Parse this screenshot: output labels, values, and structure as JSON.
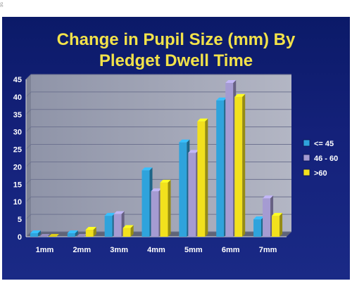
{
  "corner_mark": "g",
  "colors": {
    "background": "#12207a",
    "title": "#f2e24a",
    "axis_text": "#ffffff",
    "grid": "#8d93b8",
    "wall": "#9fa3b3"
  },
  "chart_data": {
    "type": "bar",
    "title_lines": [
      "Change in Pupil Size (mm) By",
      "Pledget Dwell Time"
    ],
    "xlabel": "",
    "ylabel": "",
    "categories": [
      "1mm",
      "2mm",
      "3mm",
      "4mm",
      "5mm",
      "6mm",
      "7mm"
    ],
    "ylim": [
      0,
      45
    ],
    "yticks": [
      0,
      5,
      10,
      15,
      20,
      25,
      30,
      35,
      40,
      45
    ],
    "grid": true,
    "legend_position": "right",
    "series": [
      {
        "name": "<= 45",
        "color": "#2fa3dc",
        "values": [
          1,
          1,
          6,
          19,
          27,
          39,
          5
        ]
      },
      {
        "name": "46 - 60",
        "color": "#a59bd2",
        "values": [
          0,
          0,
          6.5,
          13,
          24,
          44,
          11
        ]
      },
      {
        "name": ">60",
        "color": "#f2e11d",
        "values": [
          0,
          2,
          2.5,
          15.5,
          33,
          40,
          6
        ]
      }
    ]
  }
}
